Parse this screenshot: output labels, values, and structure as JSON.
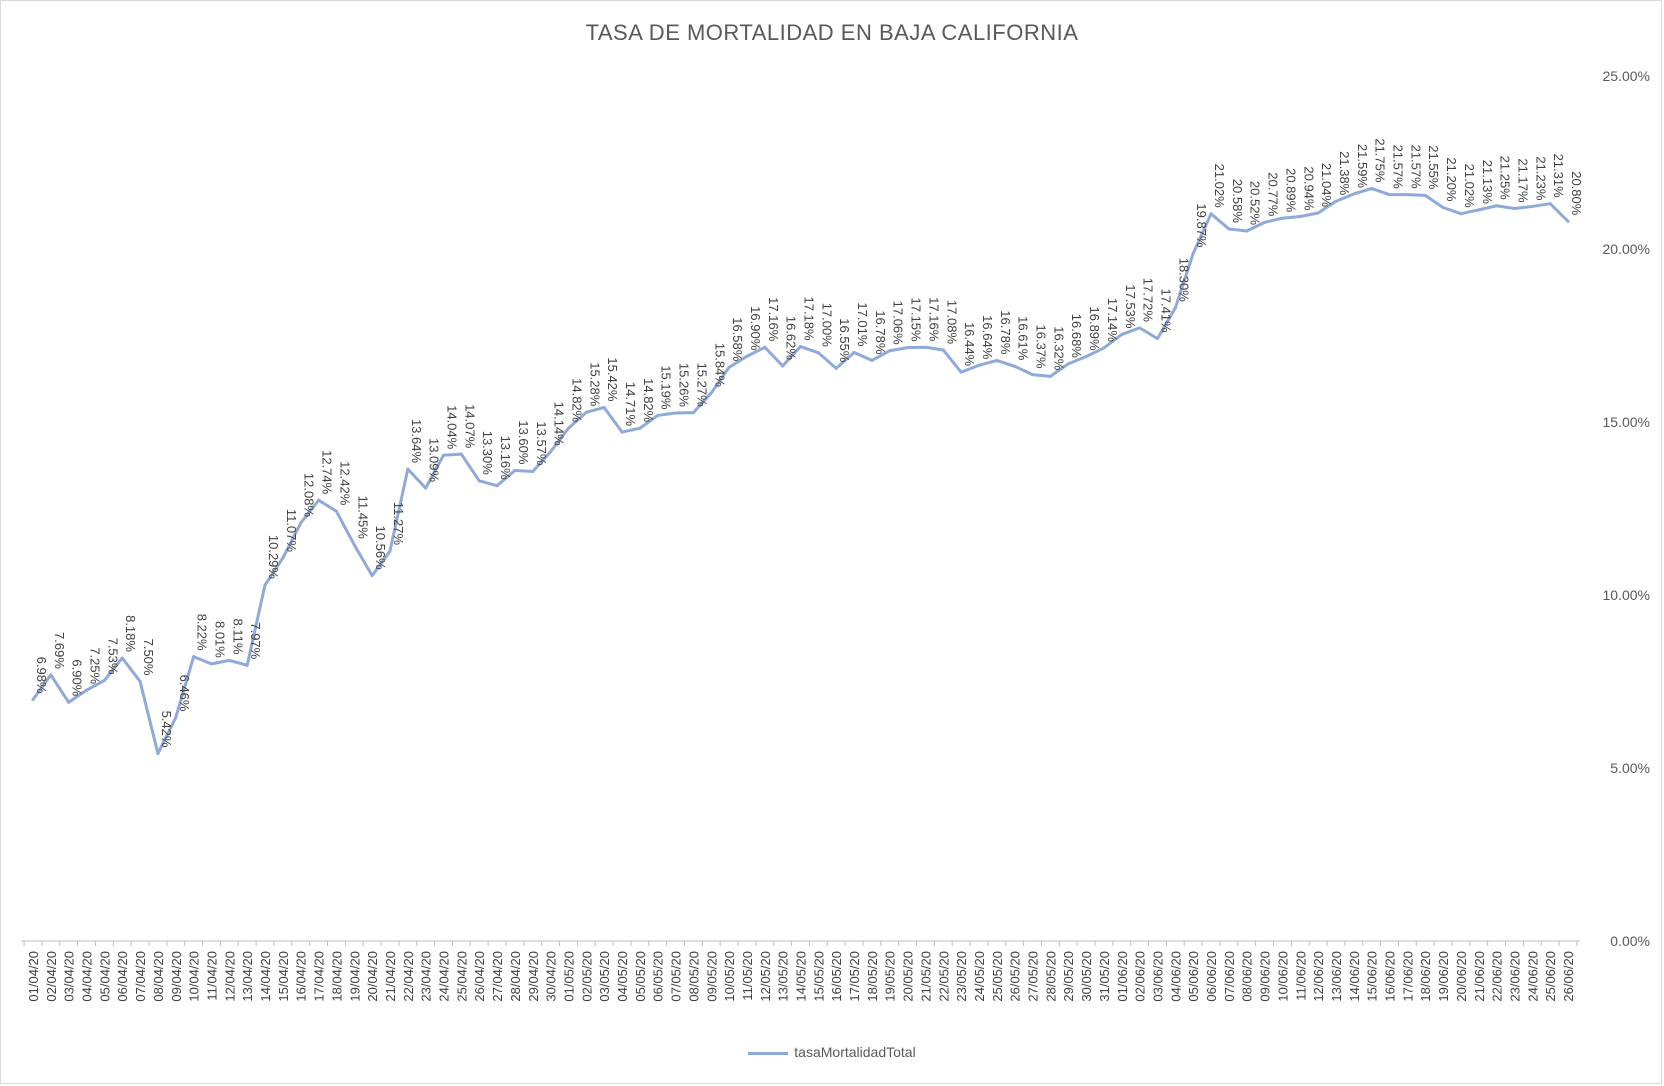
{
  "chart_data": {
    "type": "area",
    "title": "TASA DE MORTALIDAD EN BAJA CALIFORNIA",
    "xlabel": "",
    "ylabel": "",
    "ylim": [
      0,
      25
    ],
    "y_axis_position": "right",
    "y_ticks": [
      "0.00%",
      "5.00%",
      "10.00%",
      "15.00%",
      "20.00%",
      "25.00%"
    ],
    "legend_position": "bottom",
    "grid": false,
    "series_color": "#8eaadb",
    "categories": [
      "01/04/20",
      "02/04/20",
      "03/04/20",
      "04/04/20",
      "05/04/20",
      "06/04/20",
      "07/04/20",
      "08/04/20",
      "09/04/20",
      "10/04/20",
      "11/04/20",
      "12/04/20",
      "13/04/20",
      "14/04/20",
      "15/04/20",
      "16/04/20",
      "17/04/20",
      "18/04/20",
      "19/04/20",
      "20/04/20",
      "21/04/20",
      "22/04/20",
      "23/04/20",
      "24/04/20",
      "25/04/20",
      "26/04/20",
      "27/04/20",
      "28/04/20",
      "29/04/20",
      "30/04/20",
      "01/05/20",
      "02/05/20",
      "03/05/20",
      "04/05/20",
      "05/05/20",
      "06/05/20",
      "07/05/20",
      "08/05/20",
      "09/05/20",
      "10/05/20",
      "11/05/20",
      "12/05/20",
      "13/05/20",
      "14/05/20",
      "15/05/20",
      "16/05/20",
      "17/05/20",
      "18/05/20",
      "19/05/20",
      "20/05/20",
      "21/05/20",
      "22/05/20",
      "23/05/20",
      "24/05/20",
      "25/05/20",
      "26/05/20",
      "27/05/20",
      "28/05/20",
      "29/05/20",
      "30/05/20",
      "31/05/20",
      "01/06/20",
      "02/06/20",
      "03/06/20",
      "04/06/20",
      "05/06/20",
      "06/06/20",
      "07/06/20",
      "08/06/20",
      "09/06/20",
      "10/06/20",
      "11/06/20",
      "12/06/20",
      "13/06/20",
      "14/06/20",
      "15/06/20",
      "16/06/20",
      "17/06/20",
      "18/06/20",
      "19/06/20",
      "20/06/20",
      "21/06/20",
      "22/06/20",
      "23/06/20",
      "24/06/20",
      "25/06/20",
      "26/06/20"
    ],
    "series": [
      {
        "name": "tasaMortalidadTotal",
        "values": [
          6.98,
          7.69,
          6.9,
          7.25,
          7.53,
          8.18,
          7.5,
          5.42,
          6.46,
          8.22,
          8.01,
          8.11,
          7.97,
          10.29,
          11.07,
          12.08,
          12.74,
          12.42,
          11.45,
          10.56,
          11.27,
          13.64,
          13.09,
          14.04,
          14.07,
          13.3,
          13.16,
          13.6,
          13.57,
          14.14,
          14.82,
          15.28,
          15.42,
          14.71,
          14.82,
          15.19,
          15.26,
          15.27,
          15.84,
          16.58,
          16.9,
          17.16,
          16.62,
          17.18,
          17.0,
          16.55,
          17.01,
          16.78,
          17.06,
          17.15,
          17.16,
          17.08,
          16.44,
          16.64,
          16.78,
          16.61,
          16.37,
          16.32,
          16.68,
          16.89,
          17.14,
          17.53,
          17.72,
          17.41,
          18.3,
          19.87,
          21.02,
          20.58,
          20.52,
          20.77,
          20.89,
          20.94,
          21.04,
          21.38,
          21.59,
          21.75,
          21.57,
          21.57,
          21.55,
          21.2,
          21.02,
          21.13,
          21.25,
          21.17,
          21.23,
          21.31,
          20.8
        ]
      }
    ]
  }
}
